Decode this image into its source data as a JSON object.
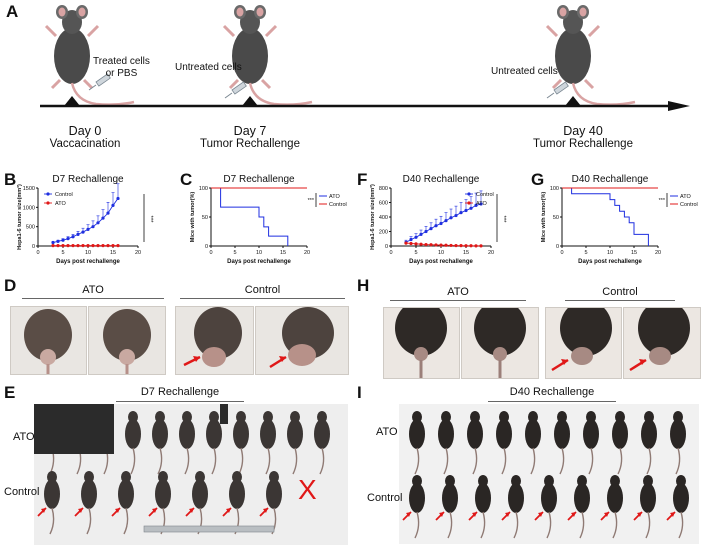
{
  "panels": {
    "A": "A",
    "B": "B",
    "C": "C",
    "D": "D",
    "E": "E",
    "F": "F",
    "G": "G",
    "H": "H",
    "I": "I"
  },
  "timeline": {
    "treated_label_1": "Treated cells",
    "treated_label_2": "or PBS",
    "untreated_label_1": "Untreated cells",
    "untreated_label_2": "Untreated cells",
    "day0_line1": "Day 0",
    "day0_line2": "Vaccacination",
    "day7_line1": "Day 7",
    "day7_line2": "Tumor Rechallenge",
    "day40_line1": "Day 40",
    "day40_line2": "Tumor Rechallenge"
  },
  "photos": {
    "D_ato": "ATO",
    "D_control": "Control",
    "E_title": "D7 Rechallenge",
    "E_ato": "ATO",
    "E_control": "Control",
    "E_x": "X",
    "H_ato": "ATO",
    "H_control": "Control",
    "I_title": "D40 Rechallenge",
    "I_ato": "ATO",
    "I_control": "Control"
  },
  "colors": {
    "control": "#1f2fe0",
    "ato": "#e01818",
    "arrow": "#e01818"
  },
  "chart_data": [
    {
      "id": "B",
      "type": "line",
      "title": "D7 Rechallenge",
      "xlabel": "Days post rechallenge",
      "ylabel": "Hepa1-6 tumor size(mm³)",
      "xlim": [
        0,
        20
      ],
      "ylim": [
        0,
        1500
      ],
      "xticks": [
        0,
        5,
        10,
        15,
        20
      ],
      "yticks": [
        0,
        500,
        1000,
        1500
      ],
      "significance": "***",
      "legend": "top-left",
      "x": [
        3,
        4,
        5,
        6,
        7,
        8,
        9,
        10,
        11,
        12,
        13,
        14,
        15,
        16
      ],
      "series": [
        {
          "name": "Control",
          "color": "#1f2fe0",
          "values": [
            90,
            120,
            150,
            190,
            240,
            300,
            360,
            430,
            500,
            600,
            720,
            850,
            1050,
            1230
          ],
          "err": [
            20,
            30,
            40,
            50,
            60,
            80,
            100,
            120,
            150,
            180,
            220,
            280,
            330,
            380
          ]
        },
        {
          "name": "ATO",
          "color": "#e01818",
          "values": [
            10,
            10,
            10,
            10,
            10,
            10,
            10,
            10,
            10,
            10,
            10,
            10,
            10,
            10
          ]
        }
      ]
    },
    {
      "id": "C",
      "type": "line",
      "title": "D7 Rechallenge",
      "xlabel": "Days post rechallenge",
      "ylabel": "Mice with tumor(%)",
      "xlim": [
        0,
        20
      ],
      "ylim": [
        0,
        100
      ],
      "xticks": [
        0,
        5,
        10,
        15,
        20
      ],
      "yticks": [
        0,
        50,
        100
      ],
      "significance": "***",
      "legend": "right",
      "series": [
        {
          "name": "ATO",
          "color": "#1f2fe0",
          "x": [
            0,
            2,
            2,
            10,
            10,
            11,
            11,
            12,
            12,
            16,
            16
          ],
          "values": [
            100,
            100,
            67,
            67,
            50,
            50,
            33,
            33,
            17,
            17,
            0
          ]
        },
        {
          "name": "Control",
          "color": "#e01818",
          "x": [
            0,
            20
          ],
          "values": [
            100,
            100
          ]
        }
      ]
    },
    {
      "id": "F",
      "type": "line",
      "title": "D40 Rechallenge",
      "xlabel": "Days post rechallenge",
      "ylabel": "Hepa1-6 tumor size(mm³)",
      "xlim": [
        0,
        20
      ],
      "ylim": [
        0,
        800
      ],
      "xticks": [
        0,
        5,
        10,
        15,
        20
      ],
      "yticks": [
        0,
        200,
        400,
        600,
        800
      ],
      "significance": "***",
      "legend": "top-right",
      "x": [
        3,
        4,
        5,
        6,
        7,
        8,
        9,
        10,
        11,
        12,
        13,
        14,
        15,
        16,
        17,
        18
      ],
      "series": [
        {
          "name": "Control",
          "color": "#1f2fe0",
          "values": [
            50,
            90,
            120,
            160,
            200,
            240,
            280,
            310,
            350,
            390,
            420,
            460,
            490,
            520,
            560,
            580
          ],
          "err": [
            30,
            40,
            50,
            60,
            70,
            80,
            90,
            100,
            110,
            120,
            130,
            140,
            150,
            160,
            170,
            180
          ]
        },
        {
          "name": "ATO",
          "color": "#e01818",
          "values": [
            40,
            35,
            30,
            25,
            20,
            18,
            15,
            12,
            10,
            8,
            6,
            5,
            4,
            3,
            2,
            2
          ]
        }
      ]
    },
    {
      "id": "G",
      "type": "line",
      "title": "D40 Rechallenge",
      "xlabel": "Days post rechallenge",
      "ylabel": "Mice with tumor(%)",
      "xlim": [
        0,
        20
      ],
      "ylim": [
        0,
        100
      ],
      "xticks": [
        0,
        5,
        10,
        15,
        20
      ],
      "yticks": [
        0,
        50,
        100
      ],
      "significance": "***",
      "legend": "right",
      "series": [
        {
          "name": "ATO",
          "color": "#1f2fe0",
          "x": [
            0,
            2,
            2,
            10,
            10,
            11,
            11,
            12,
            12,
            13,
            13,
            14,
            14,
            15,
            15,
            18,
            18
          ],
          "values": [
            100,
            100,
            90,
            90,
            80,
            80,
            70,
            70,
            60,
            60,
            50,
            50,
            40,
            40,
            20,
            20,
            0
          ]
        },
        {
          "name": "Control",
          "color": "#e01818",
          "x": [
            0,
            20
          ],
          "values": [
            100,
            100
          ]
        }
      ]
    }
  ]
}
